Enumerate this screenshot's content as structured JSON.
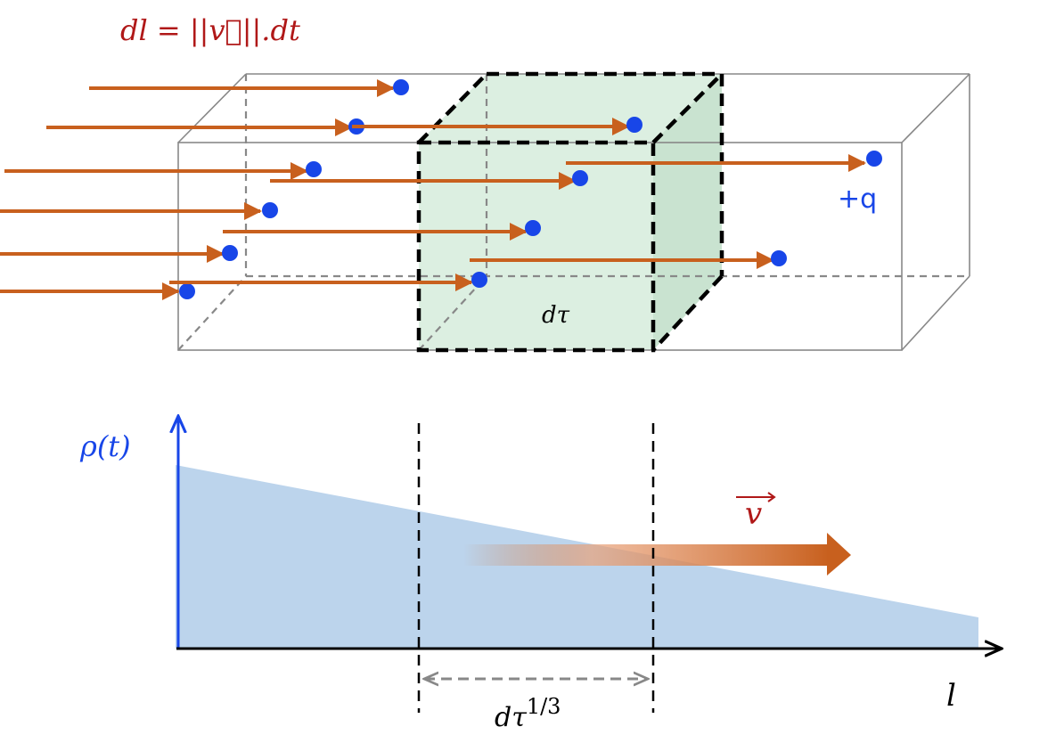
{
  "formula": "dl = ||v⃗||.dt",
  "formula_parts": {
    "lhs": "dl",
    "eq": "=",
    "norm_open": "||",
    "v": "v",
    "norm_close": "||",
    "rhs": ".dt"
  },
  "charge_label": "+q",
  "volume_label": "dτ",
  "density_label": "ρ(t)",
  "velocity_label": "v",
  "axis_label_l": "l",
  "length_label": "dτ",
  "length_exponent": "1/3",
  "colors": {
    "arrow": "#c8601e",
    "charge": "#1846e8",
    "formula": "#b01818",
    "density_fill": "#bcd4ec",
    "volume_fill": "#d6ecdc"
  }
}
